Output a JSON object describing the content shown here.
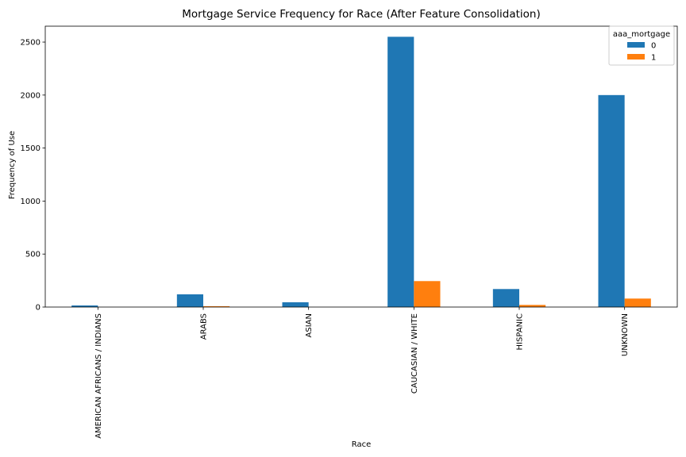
{
  "chart_data": {
    "type": "bar",
    "title": "Mortgage Service Frequency for Race (After Feature Consolidation)",
    "xlabel": "Race",
    "ylabel": "Frequency of Use",
    "categories": [
      "AMERICAN AFRICANS / INDIANS",
      "ARABS",
      "ASIAN",
      "CAUCASIAN / WHITE",
      "HISPANIC",
      "UNKNOWN"
    ],
    "series": [
      {
        "name": "0",
        "color": "#1f77b4",
        "values": [
          15,
          120,
          45,
          2550,
          170,
          2000
        ]
      },
      {
        "name": "1",
        "color": "#ff7f0e",
        "values": [
          0,
          8,
          0,
          245,
          20,
          80
        ]
      }
    ],
    "ylim": [
      0,
      2650
    ],
    "yticks": [
      0,
      500,
      1000,
      1500,
      2000,
      2500
    ],
    "grid": false,
    "legend": {
      "title": "aaa_mortgage",
      "position": "top-right"
    }
  }
}
